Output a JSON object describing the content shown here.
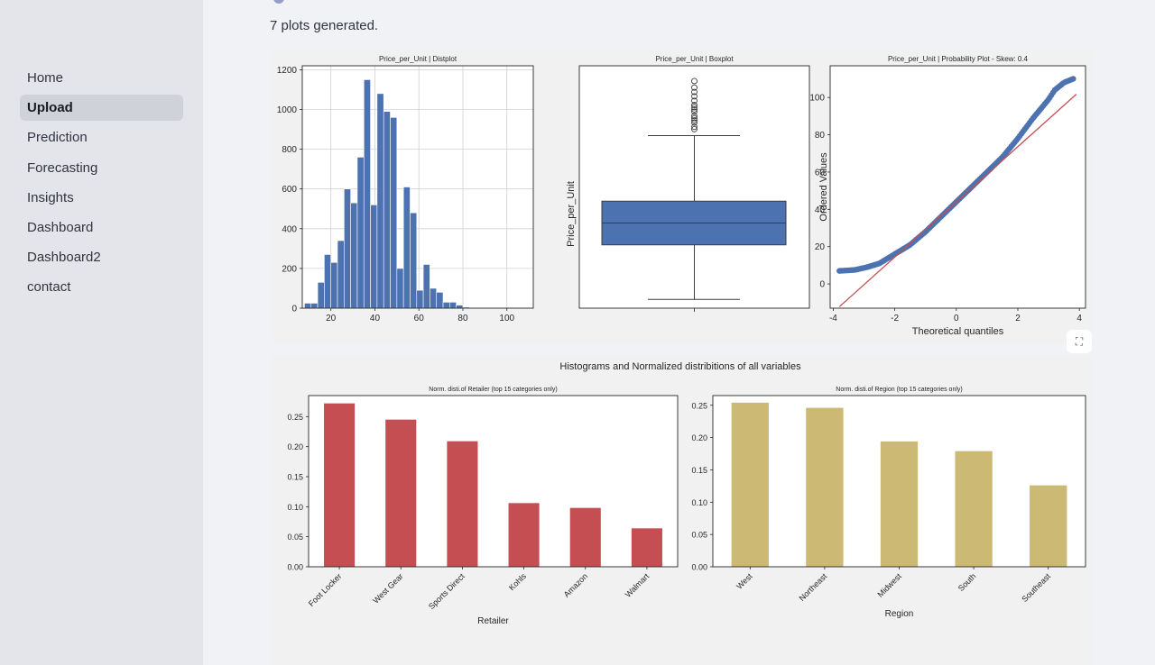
{
  "sidebar": {
    "items": [
      {
        "label": "Home"
      },
      {
        "label": "Upload",
        "active": true
      },
      {
        "label": "Prediction"
      },
      {
        "label": "Forecasting"
      },
      {
        "label": "Insights"
      },
      {
        "label": "Dashboard"
      },
      {
        "label": "Dashboard2"
      },
      {
        "label": "contact"
      }
    ]
  },
  "main": {
    "status_text": "7 plots generated.",
    "expand_icon": "expand-icon"
  },
  "colors": {
    "blue": "#4c72b0",
    "red": "#c44e52",
    "gold": "#ccb974",
    "fitline": "#c44e52"
  },
  "chart_data": [
    {
      "type": "bar",
      "title": "Price_per_Unit | Distplot",
      "xlabel": "",
      "ylabel": "",
      "xlim": [
        7,
        112
      ],
      "ylim": [
        0,
        1220
      ],
      "xticks": [
        20,
        40,
        60,
        80,
        100
      ],
      "yticks": [
        0,
        200,
        400,
        600,
        800,
        1000,
        1200
      ],
      "bin_start": 8,
      "bin_width": 3,
      "values": [
        25,
        25,
        130,
        270,
        230,
        340,
        600,
        530,
        760,
        1150,
        520,
        1080,
        990,
        960,
        200,
        610,
        480,
        90,
        220,
        100,
        80,
        30,
        30,
        15,
        5
      ]
    },
    {
      "type": "box",
      "title": "Price_per_Unit | Boxplot",
      "ylabel": "Price_per_Unit",
      "ylim": [
        6,
        117
      ],
      "whisker_low": 10,
      "q1": 35,
      "median": 45,
      "q3": 55,
      "whisker_high": 85,
      "outliers": [
        88,
        89,
        91,
        92,
        93,
        94,
        96,
        97,
        98,
        99,
        101,
        103,
        105,
        107,
        110
      ]
    },
    {
      "type": "scatter",
      "title": "Price_per_Unit | Probability Plot - Skew: 0.4",
      "xlabel": "Theoretical quantiles",
      "ylabel": "Ordered Values",
      "xlim": [
        -4.1,
        4.2
      ],
      "ylim": [
        -13,
        117
      ],
      "xticks": [
        -4,
        -2,
        0,
        2,
        4
      ],
      "yticks": [
        0,
        20,
        40,
        60,
        80,
        100
      ],
      "fit_line": {
        "slope": 14.8,
        "intercept": 44
      },
      "curve_points": [
        [
          -3.8,
          7
        ],
        [
          -3.3,
          7.5
        ],
        [
          -2.9,
          9
        ],
        [
          -2.5,
          11
        ],
        [
          -2.0,
          16
        ],
        [
          -1.5,
          21
        ],
        [
          -1.0,
          28
        ],
        [
          -0.5,
          36
        ],
        [
          0,
          44
        ],
        [
          0.5,
          52
        ],
        [
          1.0,
          60
        ],
        [
          1.5,
          68
        ],
        [
          2.0,
          78
        ],
        [
          2.5,
          89
        ],
        [
          3.0,
          99
        ],
        [
          3.2,
          104
        ],
        [
          3.5,
          108
        ],
        [
          3.8,
          110
        ]
      ]
    },
    {
      "type": "bar",
      "title": "Norm. disti.of Retailer (top 15 categories only)",
      "xlabel": "Retailer",
      "ylim": [
        0,
        0.285
      ],
      "yticks": [
        0.0,
        0.05,
        0.1,
        0.15,
        0.2,
        0.25
      ],
      "categories": [
        "Foot Locker",
        "West Gear",
        "Sports Direct",
        "Kohls",
        "Amazon",
        "Walmart"
      ],
      "values": [
        0.272,
        0.245,
        0.209,
        0.106,
        0.098,
        0.064
      ]
    },
    {
      "type": "bar",
      "title": "Norm. disti.of Region (top 15 categories only)",
      "xlabel": "Region",
      "ylim": [
        0,
        0.265
      ],
      "yticks": [
        0.0,
        0.05,
        0.1,
        0.15,
        0.2,
        0.25
      ],
      "categories": [
        "West",
        "Northeast",
        "Midwest",
        "South",
        "Southeast"
      ],
      "values": [
        0.254,
        0.246,
        0.194,
        0.179,
        0.126
      ]
    }
  ],
  "fig2_title": "Histograms and Normalized distribitions of all variables"
}
